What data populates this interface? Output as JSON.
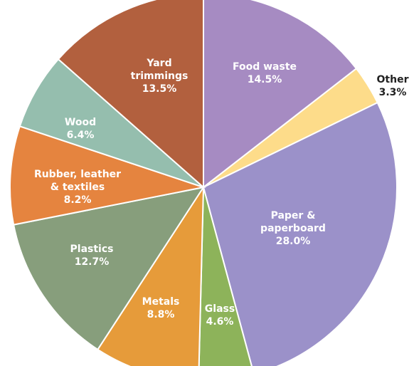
{
  "chart_data": {
    "type": "pie",
    "title": "",
    "slices": [
      {
        "lines": [
          "Food waste"
        ],
        "value_label": "14.5%",
        "value": 14.5,
        "color": "#a68bc2",
        "label_color": "#ffffff"
      },
      {
        "lines": [
          "Other"
        ],
        "value_label": "3.3%",
        "value": 3.3,
        "color": "#fddc8a",
        "label_color": "#222222"
      },
      {
        "lines": [
          "Paper &",
          "paperboard"
        ],
        "value_label": "28.0%",
        "value": 28.0,
        "color": "#9b91c9",
        "label_color": "#ffffff"
      },
      {
        "lines": [
          "Glass"
        ],
        "value_label": "4.6%",
        "value": 4.6,
        "color": "#8db35a",
        "label_color": "#ffffff"
      },
      {
        "lines": [
          "Metals"
        ],
        "value_label": "8.8%",
        "value": 8.8,
        "color": "#e69b3a",
        "label_color": "#ffffff"
      },
      {
        "lines": [
          "Plastics"
        ],
        "value_label": "12.7%",
        "value": 12.7,
        "color": "#879e7c",
        "label_color": "#ffffff"
      },
      {
        "lines": [
          "Rubber, leather",
          "& textiles"
        ],
        "value_label": "8.2%",
        "value": 8.2,
        "color": "#e5843f",
        "label_color": "#ffffff"
      },
      {
        "lines": [
          "Wood"
        ],
        "value_label": "6.4%",
        "value": 6.4,
        "color": "#95beae",
        "label_color": "#ffffff"
      },
      {
        "lines": [
          "Yard",
          "trimmings"
        ],
        "value_label": "13.5%",
        "value": 13.5,
        "color": "#b2603e",
        "label_color": "#ffffff"
      }
    ]
  }
}
